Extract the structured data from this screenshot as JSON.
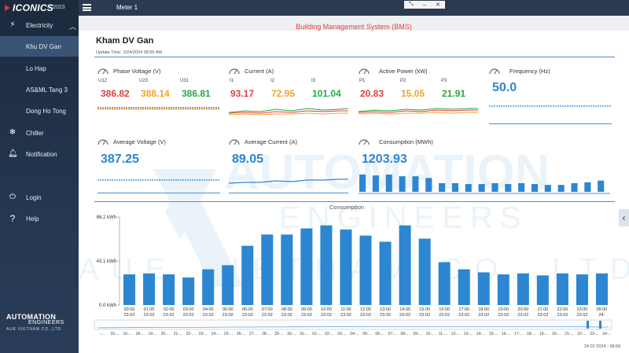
{
  "app": {
    "logo": "ICONICS",
    "year": "© 2023"
  },
  "sidebar": {
    "electricity": "Electricity",
    "sub_items": [
      "Khu DV Gan",
      "Lo Hap",
      "AS&ML Tang 3",
      "Dong Ho Tong"
    ],
    "active_sub": 0,
    "chiller": "Chiller",
    "notification": "Notification",
    "login": "Login",
    "help": "Help",
    "brand": {
      "line1": "AUTOMATION",
      "line2": "ENGINEERS",
      "line3": "AUE VIETNAM CO.,LTD"
    }
  },
  "topbar": {
    "tab": "Meter 1"
  },
  "banner": {
    "title": "Building Management System (BMS)"
  },
  "header": {
    "title": "Kham DV Gan",
    "update_label": "Update Time:",
    "update_time": "2/24/2024 08:55 AM"
  },
  "cards": {
    "phase_voltage": {
      "title": "Phase Voltage (V)",
      "labels": [
        "U12",
        "U23",
        "U31"
      ],
      "values": [
        "386.82",
        "388.14",
        "386.81"
      ]
    },
    "current": {
      "title": "Current (A)",
      "labels": [
        "I1",
        "I2",
        "I3"
      ],
      "values": [
        "93.17",
        "72.95",
        "101.04"
      ]
    },
    "active_power": {
      "title": "Active Power (kW)",
      "labels": [
        "P1",
        "P2",
        "P3"
      ],
      "values": [
        "20.83",
        "15.05",
        "21.91"
      ]
    },
    "frequency": {
      "title": "Frequency (Hz)",
      "value": "50.0"
    },
    "avg_voltage": {
      "title": "Average Voltage (V)",
      "value": "387.25"
    },
    "avg_current": {
      "title": "Average Current (A)",
      "value": "89.05"
    },
    "consumption": {
      "title": "Consumption (MWh)",
      "value": "1203.93",
      "mini_bars": [
        20,
        19,
        20,
        18,
        18,
        16,
        10,
        10,
        9,
        9,
        10,
        9,
        10,
        9,
        8,
        8,
        10,
        11,
        13
      ]
    }
  },
  "chart_data": {
    "type": "bar",
    "title": "Consumption",
    "unit": "kWh",
    "y_ticks": [
      "0.0 kWh",
      "43.1 kWh",
      "86.2 kWh"
    ],
    "ylim": [
      0,
      86.2
    ],
    "categories": [
      "00:00 23-02",
      "01:00 23-02",
      "02:00 23-02",
      "03:00 23-02",
      "04:00 23-02",
      "05:00 23-02",
      "06:00 23-02",
      "07:00 23-02",
      "08:00 23-02",
      "09:00 23-02",
      "10:00 23-02",
      "11:00 23-02",
      "12:00 23-02",
      "13:00 23-02",
      "14:00 23-02",
      "15:00 23-02",
      "16:00 23-02",
      "17:00 23-02",
      "18:00 23-02",
      "19:00 23-02",
      "20:00 23-02",
      "21:00 23-02",
      "22:00 23-02",
      "23:00 23-02",
      "00:00 24-"
    ],
    "values": [
      30,
      31,
      30,
      27,
      35,
      39,
      58,
      69,
      69,
      75,
      78,
      74,
      68,
      62,
      78,
      65,
      42,
      35,
      32,
      30,
      31,
      29,
      31,
      30,
      31
    ],
    "scrubber_labels": [
      "-...",
      "15-...",
      "16-...",
      "18-...",
      "19-...",
      "20-...",
      "21-...",
      "22-...",
      "23-...",
      "24-...",
      "25-...",
      "26-...",
      "27-...",
      "28-...",
      "29-...",
      "30-...",
      "31-...",
      "01-...",
      "02-...",
      "03-...",
      "04-...",
      "05-...",
      "06-...",
      "07-...",
      "08-...",
      "09-...",
      "10-...",
      "11-...",
      "12-...",
      "13-...",
      "14-...",
      "15-...",
      "16-...",
      "17-...",
      "18-...",
      "19-...",
      "20-...",
      "21-...",
      "22-...",
      "23-...",
      "24-..."
    ]
  },
  "watermark": {
    "line1": "AUTOMATION",
    "line2": "ENGINEERS",
    "line3": "AUE VIETNAM CO.,LTD"
  },
  "status": {
    "timestamp": "24 02 2024 - 08:58"
  }
}
